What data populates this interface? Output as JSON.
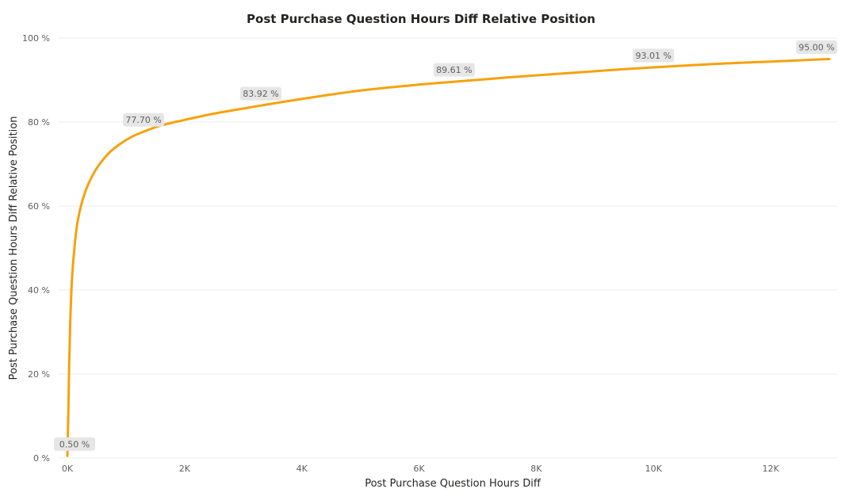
{
  "chart_data": {
    "type": "line",
    "title": "Post Purchase Question Hours Diff Relative Position",
    "xlabel": "Post Purchase Question Hours Diff",
    "ylabel": "Post Purchase Question Hours Diff Relative Position",
    "xlim": [
      0,
      13000
    ],
    "ylim": [
      0,
      100
    ],
    "grid": true,
    "x_ticks": [
      {
        "value": 0,
        "label": "0K"
      },
      {
        "value": 2000,
        "label": "2K"
      },
      {
        "value": 4000,
        "label": "4K"
      },
      {
        "value": 6000,
        "label": "6K"
      },
      {
        "value": 8000,
        "label": "8K"
      },
      {
        "value": 10000,
        "label": "10K"
      },
      {
        "value": 12000,
        "label": "12K"
      }
    ],
    "y_ticks": [
      {
        "value": 0,
        "label": "0 %"
      },
      {
        "value": 20,
        "label": "20 %"
      },
      {
        "value": 40,
        "label": "40 %"
      },
      {
        "value": 60,
        "label": "60 %"
      },
      {
        "value": 80,
        "label": "80 %"
      },
      {
        "value": 100,
        "label": "100 %"
      }
    ],
    "series": [
      {
        "color": "#F7A10D",
        "points": [
          [
            0,
            0.5
          ],
          [
            15,
            10
          ],
          [
            30,
            22
          ],
          [
            50,
            33
          ],
          [
            80,
            43
          ],
          [
            120,
            50
          ],
          [
            170,
            56
          ],
          [
            250,
            61
          ],
          [
            350,
            65
          ],
          [
            500,
            69
          ],
          [
            700,
            72.5
          ],
          [
            900,
            74.8
          ],
          [
            1100,
            76.5
          ],
          [
            1300,
            77.7
          ],
          [
            1600,
            79.2
          ],
          [
            2000,
            80.5
          ],
          [
            2500,
            82
          ],
          [
            3000,
            83.2
          ],
          [
            3300,
            83.92
          ],
          [
            4000,
            85.5
          ],
          [
            5000,
            87.5
          ],
          [
            6000,
            88.9
          ],
          [
            6600,
            89.61
          ],
          [
            7500,
            90.6
          ],
          [
            8500,
            91.6
          ],
          [
            9300,
            92.4
          ],
          [
            10000,
            93.01
          ],
          [
            11000,
            93.8
          ],
          [
            12000,
            94.4
          ],
          [
            13000,
            95.0
          ]
        ],
        "data_labels": [
          {
            "x": 0,
            "y": 0.5,
            "label": "0.50 %"
          },
          {
            "x": 1300,
            "y": 77.7,
            "label": "77.70 %"
          },
          {
            "x": 3300,
            "y": 83.92,
            "label": "83.92 %"
          },
          {
            "x": 6600,
            "y": 89.61,
            "label": "89.61 %"
          },
          {
            "x": 10000,
            "y": 93.01,
            "label": "93.01 %"
          },
          {
            "x": 13000,
            "y": 95.0,
            "label": "95.00 %"
          }
        ]
      }
    ]
  }
}
